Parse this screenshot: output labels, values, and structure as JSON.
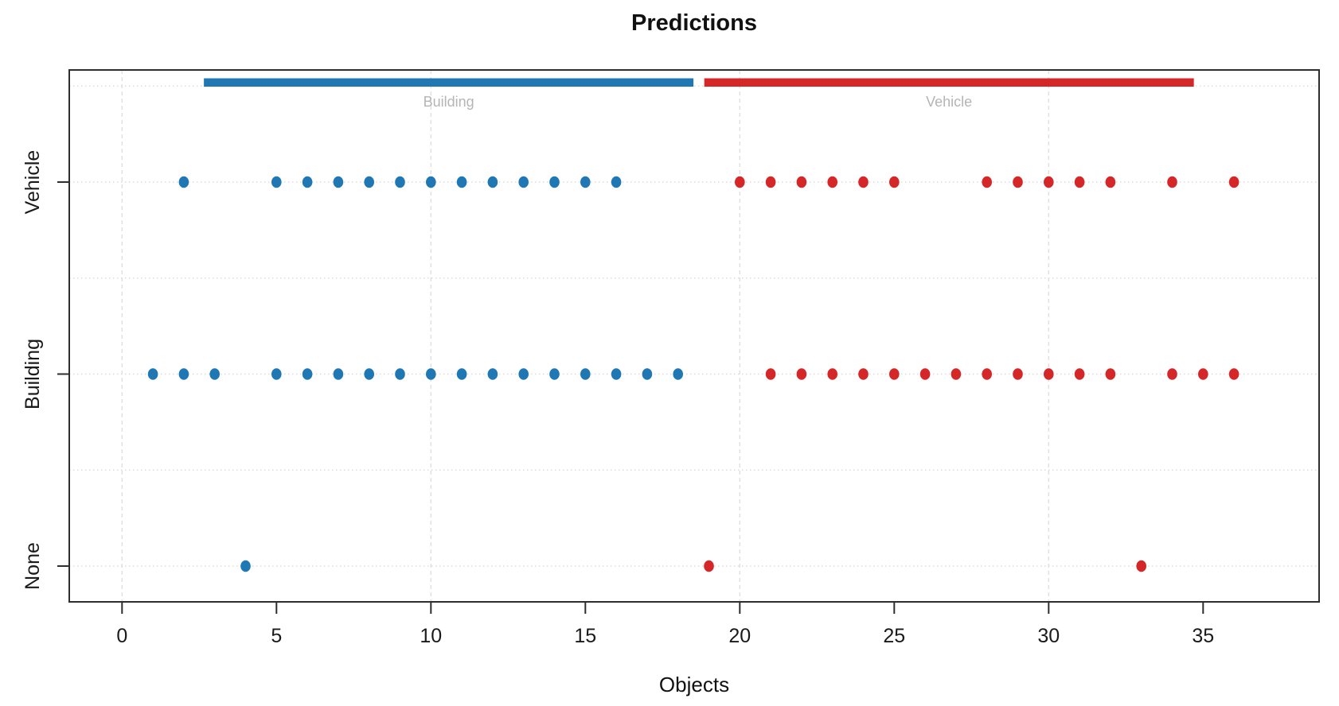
{
  "title": "Predictions",
  "xlabel": "Objects",
  "chart_data": {
    "type": "scatter",
    "title": "Predictions",
    "xlabel": "Objects",
    "ylabel": "",
    "x_ticks": [
      0,
      5,
      10,
      15,
      20,
      25,
      30,
      35
    ],
    "xlim": [
      -1.7,
      38.8
    ],
    "x_gridlines": [
      0,
      10,
      20,
      30
    ],
    "y_categories": [
      "None",
      "Building",
      "Vehicle"
    ],
    "grid": "dotted",
    "legend_position": "none",
    "colors": {
      "building": "#1f77b4",
      "vehicle": "#d62728",
      "grid_line": "#dcdcdc",
      "axis": "#2e2e2e",
      "bar_label_text": "#b5b5b5"
    },
    "top_bars": [
      {
        "label": "Building",
        "from": 2.65,
        "to": 18.5,
        "color_key": "building"
      },
      {
        "label": "Vehicle",
        "from": 18.85,
        "to": 34.7,
        "color_key": "vehicle"
      }
    ],
    "series": [
      {
        "name": "building-colored-points",
        "color_key": "building",
        "points_by_row": {
          "Vehicle": [
            2,
            5,
            6,
            7,
            8,
            9,
            10,
            11,
            12,
            13,
            14,
            15,
            16
          ],
          "Building": [
            1,
            2,
            3,
            5,
            6,
            7,
            8,
            9,
            10,
            11,
            12,
            13,
            14,
            15,
            16,
            17,
            18
          ],
          "None": [
            4
          ]
        }
      },
      {
        "name": "vehicle-colored-points",
        "color_key": "vehicle",
        "points_by_row": {
          "Vehicle": [
            20,
            21,
            22,
            23,
            24,
            25,
            28,
            29,
            30,
            31,
            32,
            34,
            36
          ],
          "Building": [
            21,
            22,
            23,
            24,
            25,
            26,
            27,
            28,
            29,
            30,
            31,
            32,
            34,
            35,
            36
          ],
          "None": [
            19,
            33
          ]
        }
      }
    ]
  }
}
